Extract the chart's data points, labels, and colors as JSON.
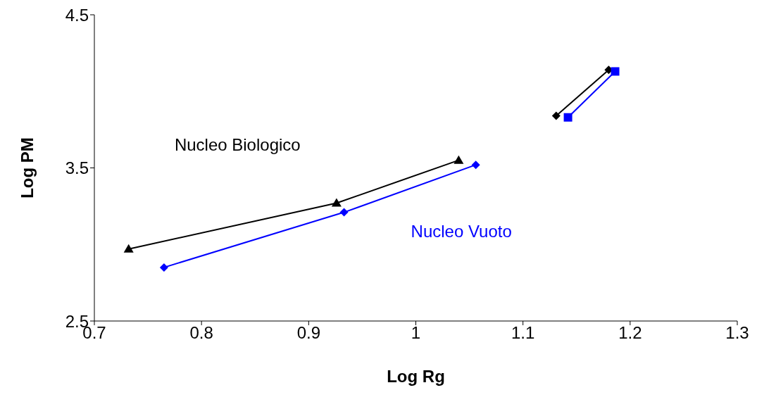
{
  "chart_data": {
    "type": "line",
    "xlabel": "Log Rg",
    "ylabel": "Log PM",
    "xlim": [
      0.7,
      1.3
    ],
    "xticks": [
      0.7,
      0.8,
      0.9,
      1,
      1.1,
      1.2,
      1.3
    ],
    "ylim": [
      2.5,
      4.5
    ],
    "yticks": [
      2.5,
      3.5,
      4.5
    ],
    "line_style": "solid",
    "series": [
      {
        "name": "Nucleo Biologico",
        "color": "#000000",
        "marker": "triangle",
        "x": [
          0.732,
          0.926,
          1.04
        ],
        "values": [
          2.97,
          3.27,
          3.55
        ]
      },
      {
        "name": "Nucleo Vuoto",
        "color": "#0000ff",
        "marker": "diamond",
        "x": [
          0.765,
          0.933,
          1.056
        ],
        "values": [
          2.85,
          3.21,
          3.52
        ]
      },
      {
        "color": "#000000",
        "marker": "diamond",
        "x": [
          1.131,
          1.18
        ],
        "values": [
          3.84,
          4.14
        ]
      },
      {
        "color": "#0000ff",
        "marker": "square",
        "x": [
          1.142,
          1.186
        ],
        "values": [
          3.83,
          4.13
        ]
      }
    ]
  }
}
